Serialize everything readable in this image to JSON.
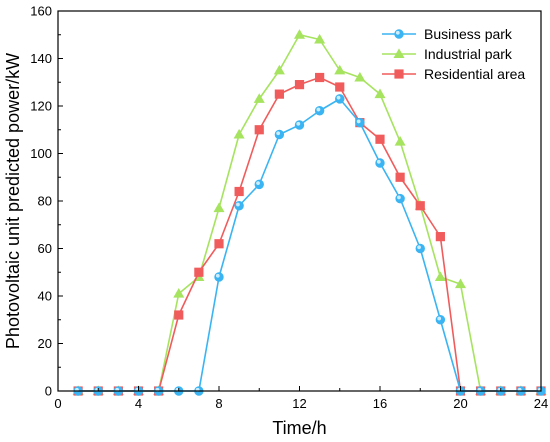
{
  "chart_data": {
    "type": "line",
    "xlabel": "Time/h",
    "ylabel": "Photovoltaic unit predicted power/kW",
    "xlim": [
      0,
      24
    ],
    "ylim": [
      0,
      160
    ],
    "xticks": [
      0,
      4,
      8,
      12,
      16,
      20,
      24
    ],
    "yticks": [
      0,
      20,
      40,
      60,
      80,
      100,
      120,
      140,
      160
    ],
    "grid": false,
    "legend_position": "top-right",
    "x": [
      1,
      2,
      3,
      4,
      5,
      6,
      7,
      8,
      9,
      10,
      11,
      12,
      13,
      14,
      15,
      16,
      17,
      18,
      19,
      20,
      21,
      22,
      23,
      24
    ],
    "series": [
      {
        "name": "Business park",
        "color": "#3ab4f2",
        "marker": "circle",
        "values": [
          0,
          0,
          0,
          0,
          0,
          0,
          0,
          48,
          78,
          87,
          108,
          112,
          118,
          123,
          113,
          96,
          81,
          60,
          30,
          0,
          0,
          0,
          0,
          0
        ]
      },
      {
        "name": "Industrial park",
        "color": "#a6e35f",
        "marker": "triangle",
        "values": [
          0,
          0,
          0,
          0,
          0,
          41,
          48,
          77,
          108,
          123,
          135,
          150,
          148,
          135,
          132,
          125,
          105,
          78,
          48,
          45,
          0,
          0,
          0,
          0
        ]
      },
      {
        "name": "Residential area",
        "color": "#f05c5c",
        "marker": "square",
        "values": [
          0,
          0,
          0,
          0,
          0,
          32,
          50,
          62,
          84,
          110,
          125,
          129,
          132,
          128,
          113,
          106,
          90,
          78,
          65,
          0,
          0,
          0,
          0,
          0
        ]
      }
    ]
  }
}
